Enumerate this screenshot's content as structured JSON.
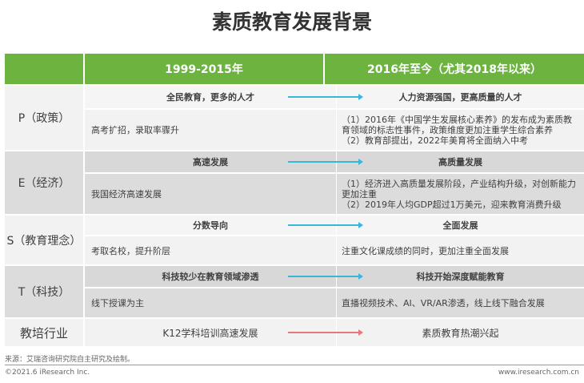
{
  "title": "素质教育发展背景",
  "header": {
    "col1": "",
    "col2": "1999-2015年",
    "col3": "2016年至今（尤其2018年以来）"
  },
  "rows": [
    {
      "label": "P（政策）",
      "before_head": "全民教育，更多的人才",
      "after_head": "人力资源强国，更高质量的人才",
      "before_detail": "高考扩招，录取率骤升",
      "after_detail": [
        "（1）2016年《中国学生发展核心素养》的发布成为素质教育领域的标志性事件，政策维度更加注重学生综合素养",
        "（2）教育部提出，2022年美育将全面纳入中考"
      ]
    },
    {
      "label": "E（经济）",
      "before_head": "高速发展",
      "after_head": "高质量发展",
      "before_detail": "我国经济高速发展",
      "after_detail": [
        "（1）经济进入高质量发展阶段，产业结构升级，对创新能力更加注重",
        "（2）2019年人均GDP超过1万美元，迎来教育消费升级"
      ]
    },
    {
      "label": "S（教育理念）",
      "before_head": "分数导向",
      "after_head": "全面发展",
      "before_detail": "考取名校，提升阶层",
      "after_detail": [
        "注重文化课成绩的同时，更加注重全面发展"
      ]
    },
    {
      "label": "T（科技）",
      "before_head": "科技较少在教育领域渗透",
      "after_head": "科技开始深度赋能教育",
      "before_detail": "线下授课为主",
      "after_detail": [
        "直播视频技术、AI、VR/AR渗透，线上线下融合发展"
      ]
    }
  ],
  "industry": {
    "label": "教培行业",
    "before": "K12学科培训高速发展",
    "after": "素质教育热潮兴起"
  },
  "footer": {
    "source": "来源：艾瑞咨询研究院自主研究及绘制。",
    "copyright": "©2021.6 iResearch Inc.",
    "url": "www.iresearch.com.cn"
  },
  "colors": {
    "header": "#6db33f",
    "arrow": "#3bb6d9",
    "industry_arrow": "#e07a80"
  }
}
